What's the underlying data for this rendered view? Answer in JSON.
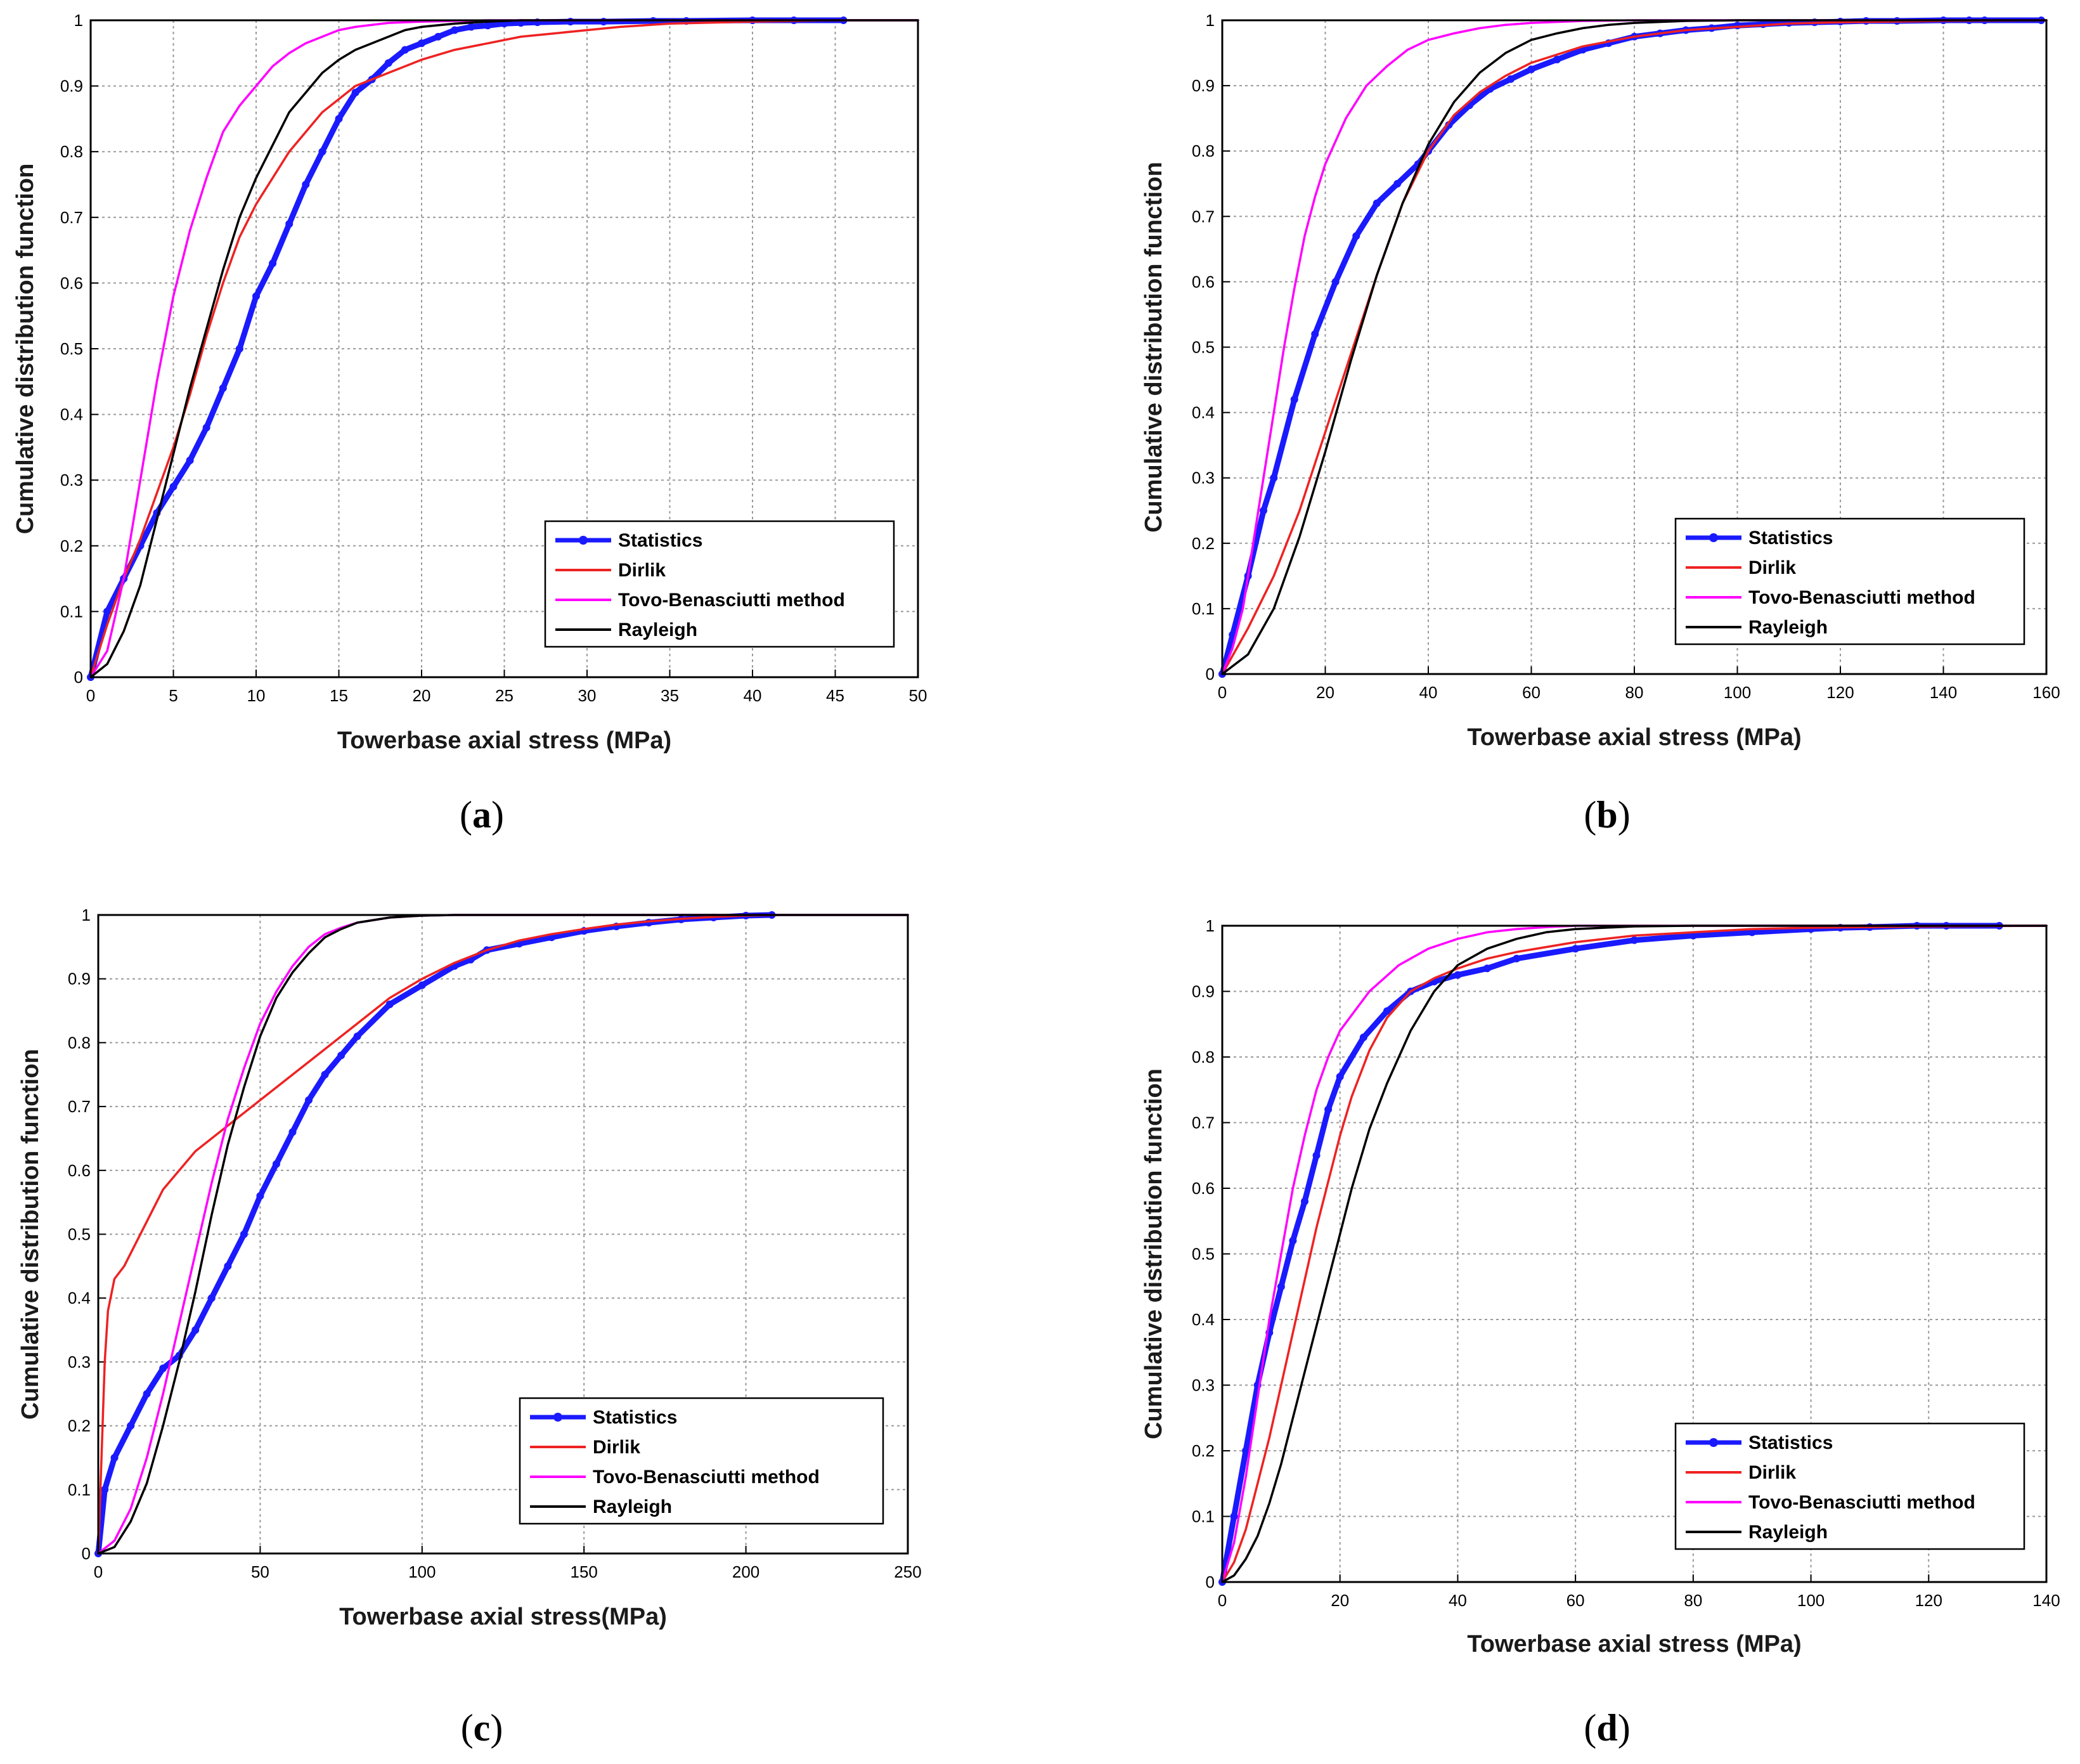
{
  "chart_data": [
    {
      "type": "line",
      "panel": "a",
      "xlabel": "Towerbase axial stress (MPa)",
      "ylabel": "Cumulative distribution function",
      "xlim": [
        0,
        50
      ],
      "ylim": [
        0,
        1
      ],
      "xticks": [
        0,
        5,
        10,
        15,
        20,
        25,
        30,
        35,
        40,
        45,
        50
      ],
      "yticks": [
        0,
        0.1,
        0.2,
        0.3,
        0.4,
        0.5,
        0.6,
        0.7,
        0.8,
        0.9,
        1
      ],
      "grid": true,
      "legend_position": "bottom-right",
      "series": [
        {
          "name": "Statistics",
          "color": "#1a1aff",
          "marker": true,
          "x": [
            0,
            1,
            2,
            3,
            4,
            5,
            6,
            7,
            8,
            9,
            10,
            11,
            12,
            13,
            14,
            15,
            16,
            17,
            18,
            19,
            20,
            21,
            22,
            23,
            24,
            25,
            26,
            27,
            29,
            31,
            34,
            36,
            40,
            42.5,
            45.5
          ],
          "y": [
            0,
            0.1,
            0.15,
            0.2,
            0.25,
            0.29,
            0.33,
            0.38,
            0.44,
            0.5,
            0.58,
            0.63,
            0.69,
            0.75,
            0.8,
            0.85,
            0.89,
            0.91,
            0.935,
            0.955,
            0.965,
            0.975,
            0.985,
            0.99,
            0.992,
            0.995,
            0.996,
            0.997,
            0.998,
            0.998,
            0.999,
            0.999,
            1,
            1,
            1
          ]
        },
        {
          "name": "Dirlik",
          "color": "#ee2222",
          "marker": false,
          "x": [
            0,
            1,
            2,
            3,
            4,
            5,
            6,
            7,
            8,
            9,
            10,
            12,
            14,
            16,
            18,
            20,
            22,
            24,
            26,
            28,
            30,
            32,
            35,
            40,
            45,
            50
          ],
          "y": [
            0,
            0.08,
            0.15,
            0.21,
            0.28,
            0.35,
            0.43,
            0.52,
            0.6,
            0.67,
            0.72,
            0.8,
            0.86,
            0.9,
            0.92,
            0.94,
            0.955,
            0.965,
            0.975,
            0.98,
            0.985,
            0.99,
            0.995,
            0.998,
            1,
            1
          ]
        },
        {
          "name": "Tovo-Benasciutti method",
          "color": "#ff00ff",
          "marker": false,
          "x": [
            0,
            1,
            2,
            3,
            4,
            5,
            6,
            7,
            8,
            9,
            10,
            11,
            12,
            13,
            14,
            15,
            16,
            17,
            18,
            20,
            22,
            24,
            26,
            30,
            40,
            50
          ],
          "y": [
            0,
            0.04,
            0.15,
            0.3,
            0.45,
            0.58,
            0.68,
            0.76,
            0.83,
            0.87,
            0.9,
            0.93,
            0.95,
            0.965,
            0.975,
            0.985,
            0.99,
            0.993,
            0.996,
            0.998,
            0.999,
            1,
            1,
            1,
            1,
            1
          ]
        },
        {
          "name": "Rayleigh",
          "color": "#000000",
          "marker": false,
          "x": [
            0,
            1,
            2,
            3,
            4,
            5,
            6,
            7,
            8,
            9,
            10,
            11,
            12,
            13,
            14,
            15,
            16,
            17,
            18,
            19,
            20,
            22,
            24,
            26,
            30,
            40,
            50
          ],
          "y": [
            0,
            0.02,
            0.07,
            0.14,
            0.24,
            0.34,
            0.44,
            0.53,
            0.62,
            0.7,
            0.76,
            0.81,
            0.86,
            0.89,
            0.92,
            0.94,
            0.955,
            0.965,
            0.975,
            0.985,
            0.99,
            0.995,
            0.998,
            1,
            1,
            1,
            1
          ]
        }
      ]
    },
    {
      "type": "line",
      "panel": "b",
      "xlabel": "Towerbase axial stress (MPa)",
      "ylabel": "Cumulative distribution function",
      "xlim": [
        0,
        160
      ],
      "ylim": [
        0,
        1
      ],
      "xticks": [
        0,
        20,
        40,
        60,
        80,
        100,
        120,
        140,
        160
      ],
      "yticks": [
        0,
        0.1,
        0.2,
        0.3,
        0.4,
        0.5,
        0.6,
        0.7,
        0.8,
        0.9,
        1
      ],
      "grid": true,
      "legend_position": "bottom-right",
      "series": [
        {
          "name": "Statistics",
          "color": "#1a1aff",
          "marker": true,
          "x": [
            0,
            2,
            5,
            8,
            10,
            14,
            18,
            22,
            26,
            30,
            34,
            38,
            40,
            44,
            48,
            52,
            56,
            60,
            65,
            70,
            75,
            80,
            85,
            90,
            95,
            100,
            105,
            110,
            115,
            120,
            125,
            131,
            140,
            145,
            148,
            159
          ],
          "y": [
            0,
            0.06,
            0.15,
            0.25,
            0.3,
            0.42,
            0.52,
            0.6,
            0.67,
            0.72,
            0.75,
            0.78,
            0.8,
            0.84,
            0.87,
            0.895,
            0.91,
            0.925,
            0.94,
            0.955,
            0.965,
            0.975,
            0.98,
            0.985,
            0.988,
            0.992,
            0.994,
            0.996,
            0.997,
            0.998,
            0.999,
            0.999,
            1,
            1,
            1,
            1
          ]
        },
        {
          "name": "Dirlik",
          "color": "#ee2222",
          "marker": false,
          "x": [
            0,
            5,
            10,
            15,
            20,
            25,
            30,
            35,
            40,
            45,
            50,
            55,
            60,
            70,
            80,
            90,
            100,
            110,
            120,
            130,
            140,
            160
          ],
          "y": [
            0,
            0.07,
            0.15,
            0.25,
            0.37,
            0.49,
            0.61,
            0.72,
            0.8,
            0.855,
            0.89,
            0.915,
            0.935,
            0.96,
            0.975,
            0.985,
            0.99,
            0.995,
            0.997,
            0.998,
            0.999,
            1
          ]
        },
        {
          "name": "Tovo-Benasciutti method",
          "color": "#ff00ff",
          "marker": false,
          "x": [
            0,
            2,
            4,
            6,
            8,
            10,
            12,
            14,
            16,
            18,
            20,
            24,
            28,
            32,
            36,
            40,
            45,
            50,
            55,
            60,
            70,
            80,
            100,
            160
          ],
          "y": [
            0,
            0.04,
            0.1,
            0.2,
            0.3,
            0.4,
            0.5,
            0.59,
            0.67,
            0.73,
            0.78,
            0.85,
            0.9,
            0.93,
            0.955,
            0.97,
            0.98,
            0.988,
            0.993,
            0.996,
            0.999,
            1,
            1,
            1
          ]
        },
        {
          "name": "Rayleigh",
          "color": "#000000",
          "marker": false,
          "x": [
            0,
            5,
            10,
            15,
            20,
            25,
            30,
            35,
            40,
            45,
            50,
            55,
            60,
            65,
            70,
            75,
            80,
            90,
            100,
            110,
            160
          ],
          "y": [
            0,
            0.03,
            0.1,
            0.21,
            0.34,
            0.48,
            0.61,
            0.72,
            0.81,
            0.875,
            0.92,
            0.95,
            0.97,
            0.98,
            0.988,
            0.993,
            0.996,
            0.999,
            1,
            1,
            1
          ]
        }
      ]
    },
    {
      "type": "line",
      "panel": "c",
      "xlabel": "Towerbase axial stress(MPa)",
      "ylabel": "Cumulative distribution function",
      "xlim": [
        0,
        250
      ],
      "ylim": [
        0,
        1
      ],
      "xticks": [
        0,
        50,
        100,
        150,
        200,
        250
      ],
      "yticks": [
        0,
        0.1,
        0.2,
        0.3,
        0.4,
        0.5,
        0.6,
        0.7,
        0.8,
        0.9,
        1
      ],
      "grid": true,
      "legend_position": "bottom-right",
      "series": [
        {
          "name": "Statistics",
          "color": "#1a1aff",
          "marker": true,
          "x": [
            0,
            2,
            5,
            10,
            15,
            20,
            25,
            30,
            35,
            40,
            45,
            50,
            55,
            60,
            65,
            70,
            75,
            80,
            90,
            100,
            110,
            115,
            120,
            130,
            140,
            150,
            160,
            170,
            180,
            190,
            200,
            208
          ],
          "y": [
            0,
            0.1,
            0.15,
            0.2,
            0.25,
            0.29,
            0.31,
            0.35,
            0.4,
            0.45,
            0.5,
            0.56,
            0.61,
            0.66,
            0.71,
            0.75,
            0.78,
            0.81,
            0.86,
            0.89,
            0.92,
            0.93,
            0.945,
            0.955,
            0.965,
            0.975,
            0.982,
            0.988,
            0.993,
            0.996,
            0.999,
            1
          ]
        },
        {
          "name": "Dirlik",
          "color": "#ee2222",
          "marker": false,
          "x": [
            0,
            1,
            2,
            3,
            5,
            8,
            10,
            15,
            20,
            30,
            40,
            50,
            60,
            70,
            80,
            90,
            100,
            110,
            120,
            130,
            140,
            150,
            160,
            170,
            180,
            190,
            200,
            210
          ],
          "y": [
            0,
            0.15,
            0.3,
            0.38,
            0.43,
            0.45,
            0.47,
            0.52,
            0.57,
            0.63,
            0.67,
            0.71,
            0.75,
            0.79,
            0.83,
            0.87,
            0.9,
            0.925,
            0.945,
            0.96,
            0.97,
            0.978,
            0.985,
            0.99,
            0.994,
            0.997,
            0.999,
            1
          ]
        },
        {
          "name": "Tovo-Benasciutti method",
          "color": "#ff00ff",
          "marker": false,
          "x": [
            0,
            5,
            10,
            15,
            20,
            25,
            30,
            35,
            40,
            45,
            50,
            55,
            60,
            65,
            70,
            75,
            80,
            90,
            100,
            110,
            120,
            250
          ],
          "y": [
            0,
            0.02,
            0.07,
            0.15,
            0.25,
            0.36,
            0.47,
            0.58,
            0.68,
            0.76,
            0.83,
            0.88,
            0.92,
            0.95,
            0.97,
            0.98,
            0.988,
            0.996,
            0.999,
            1,
            1,
            1
          ]
        },
        {
          "name": "Rayleigh",
          "color": "#000000",
          "marker": false,
          "x": [
            0,
            5,
            10,
            15,
            20,
            25,
            30,
            35,
            40,
            45,
            50,
            55,
            60,
            65,
            70,
            75,
            80,
            90,
            100,
            110,
            120,
            250
          ],
          "y": [
            0,
            0.01,
            0.05,
            0.11,
            0.2,
            0.3,
            0.41,
            0.53,
            0.64,
            0.73,
            0.81,
            0.87,
            0.91,
            0.94,
            0.965,
            0.978,
            0.988,
            0.996,
            0.999,
            1,
            1,
            1
          ]
        }
      ]
    },
    {
      "type": "line",
      "panel": "d",
      "xlabel": "Towerbase axial stress (MPa)",
      "ylabel": "Cumulative distribution function",
      "xlim": [
        0,
        140
      ],
      "ylim": [
        0,
        1
      ],
      "xticks": [
        0,
        20,
        40,
        60,
        80,
        100,
        120,
        140
      ],
      "yticks": [
        0,
        0.1,
        0.2,
        0.3,
        0.4,
        0.5,
        0.6,
        0.7,
        0.8,
        0.9,
        1
      ],
      "grid": true,
      "legend_position": "bottom-right",
      "series": [
        {
          "name": "Statistics",
          "color": "#1a1aff",
          "marker": true,
          "x": [
            0,
            2,
            4,
            6,
            8,
            10,
            12,
            14,
            16,
            18,
            20,
            24,
            28,
            32,
            36,
            40,
            45,
            50,
            60,
            70,
            80,
            90,
            100,
            105,
            110,
            118,
            123,
            132
          ],
          "y": [
            0,
            0.1,
            0.2,
            0.3,
            0.38,
            0.45,
            0.52,
            0.58,
            0.65,
            0.72,
            0.77,
            0.83,
            0.87,
            0.9,
            0.915,
            0.925,
            0.935,
            0.95,
            0.965,
            0.978,
            0.985,
            0.99,
            0.995,
            0.997,
            0.998,
            1,
            1,
            1
          ]
        },
        {
          "name": "Dirlik",
          "color": "#ee2222",
          "marker": false,
          "x": [
            0,
            2,
            4,
            6,
            8,
            10,
            12,
            14,
            16,
            18,
            20,
            22,
            25,
            28,
            32,
            36,
            40,
            45,
            50,
            60,
            70,
            80,
            90,
            100,
            110,
            120,
            140
          ],
          "y": [
            0,
            0.03,
            0.08,
            0.15,
            0.22,
            0.3,
            0.38,
            0.46,
            0.54,
            0.61,
            0.68,
            0.74,
            0.81,
            0.86,
            0.9,
            0.92,
            0.935,
            0.95,
            0.96,
            0.975,
            0.985,
            0.99,
            0.995,
            0.997,
            0.998,
            0.999,
            1
          ]
        },
        {
          "name": "Tovo-Benasciutti method",
          "color": "#ff00ff",
          "marker": false,
          "x": [
            0,
            2,
            4,
            6,
            8,
            10,
            12,
            14,
            16,
            18,
            20,
            25,
            30,
            35,
            40,
            45,
            50,
            55,
            60,
            70,
            140
          ],
          "y": [
            0,
            0.06,
            0.16,
            0.28,
            0.4,
            0.5,
            0.6,
            0.68,
            0.75,
            0.8,
            0.84,
            0.9,
            0.94,
            0.965,
            0.98,
            0.99,
            0.995,
            0.998,
            1,
            1,
            1
          ]
        },
        {
          "name": "Rayleigh",
          "color": "#000000",
          "marker": false,
          "x": [
            0,
            2,
            4,
            6,
            8,
            10,
            12,
            14,
            16,
            18,
            20,
            22,
            25,
            28,
            32,
            36,
            40,
            45,
            50,
            55,
            60,
            70,
            80,
            140
          ],
          "y": [
            0,
            0.01,
            0.035,
            0.07,
            0.12,
            0.18,
            0.25,
            0.32,
            0.39,
            0.46,
            0.53,
            0.6,
            0.69,
            0.76,
            0.84,
            0.9,
            0.94,
            0.965,
            0.98,
            0.99,
            0.995,
            0.999,
            1,
            1
          ]
        }
      ]
    }
  ],
  "panel_labels": [
    "a",
    "b",
    "c",
    "d"
  ]
}
